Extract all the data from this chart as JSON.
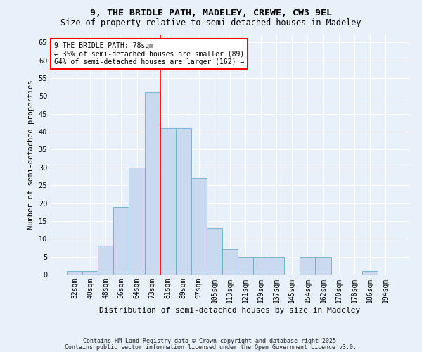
{
  "title1": "9, THE BRIDLE PATH, MADELEY, CREWE, CW3 9EL",
  "title2": "Size of property relative to semi-detached houses in Madeley",
  "xlabel": "Distribution of semi-detached houses by size in Madeley",
  "ylabel": "Number of semi-detached properties",
  "bar_labels": [
    "32sqm",
    "40sqm",
    "48sqm",
    "56sqm",
    "64sqm",
    "73sqm",
    "81sqm",
    "89sqm",
    "97sqm",
    "105sqm",
    "113sqm",
    "121sqm",
    "129sqm",
    "137sqm",
    "145sqm",
    "154sqm",
    "162sqm",
    "170sqm",
    "178sqm",
    "186sqm",
    "194sqm"
  ],
  "bar_values": [
    1,
    1,
    8,
    19,
    30,
    51,
    41,
    41,
    27,
    13,
    7,
    5,
    5,
    5,
    0,
    5,
    5,
    0,
    0,
    1,
    0
  ],
  "bar_color": "#c8d9f0",
  "bar_edge_color": "#6aaad4",
  "vline_x": 5.5,
  "vline_color": "red",
  "annotation_line1": "9 THE BRIDLE PATH: 78sqm",
  "annotation_line2": "← 35% of semi-detached houses are smaller (89)",
  "annotation_line3": "64% of semi-detached houses are larger (162) →",
  "annotation_box_color": "white",
  "annotation_box_edge_color": "red",
  "ylim_max": 67,
  "yticks": [
    0,
    5,
    10,
    15,
    20,
    25,
    30,
    35,
    40,
    45,
    50,
    55,
    60,
    65
  ],
  "footnote1": "Contains HM Land Registry data © Crown copyright and database right 2025.",
  "footnote2": "Contains public sector information licensed under the Open Government Licence v3.0.",
  "bg_color": "#e8f0fa",
  "grid_color": "white",
  "title1_fontsize": 9.5,
  "title2_fontsize": 8.5,
  "xlabel_fontsize": 8,
  "ylabel_fontsize": 7.5,
  "tick_fontsize": 7,
  "annot_fontsize": 7,
  "footnote_fontsize": 6
}
